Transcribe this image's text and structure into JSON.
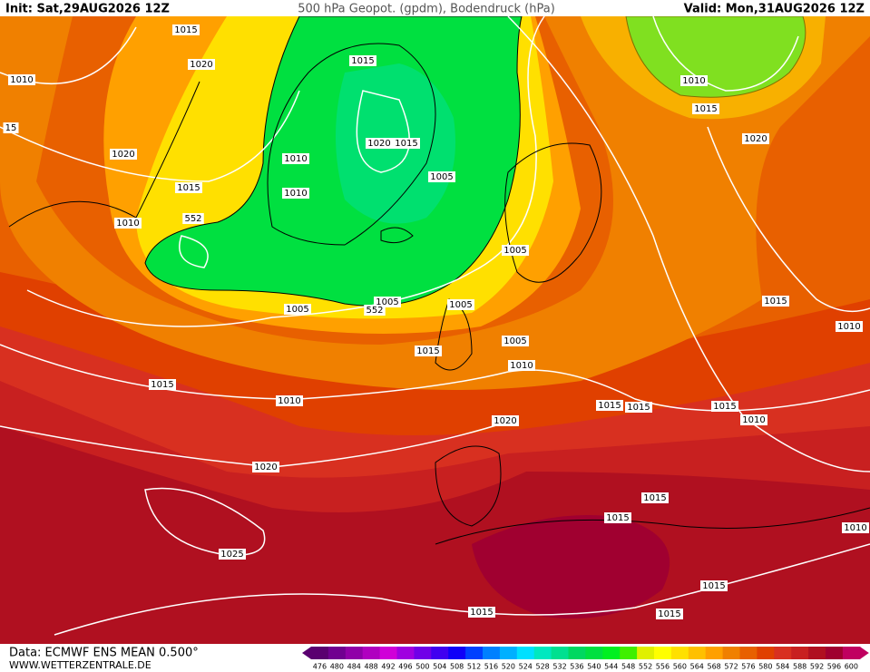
{
  "header": {
    "init": "Init: Sat,29AUG2026 12Z",
    "title": "500 hPa Geopot. (gpdm), Bodendruck (hPa)",
    "valid": "Valid: Mon,31AUG2026 12Z"
  },
  "footer": {
    "source": "Data: ECMWF ENS MEAN 0.500°",
    "site": "WWW.WETTERZENTRALE.DE"
  },
  "legend": {
    "values": [
      476,
      480,
      484,
      488,
      492,
      496,
      500,
      504,
      508,
      512,
      516,
      520,
      524,
      528,
      532,
      536,
      540,
      544,
      548,
      552,
      556,
      560,
      564,
      568,
      572,
      576,
      580,
      584,
      588,
      592,
      596,
      600
    ],
    "colors": [
      "#5a0070",
      "#700090",
      "#9000a8",
      "#b000c0",
      "#d000d8",
      "#a000e0",
      "#7000e8",
      "#4000f0",
      "#1000f8",
      "#0040ff",
      "#0080ff",
      "#00b0ff",
      "#00e0ff",
      "#00e8c0",
      "#00e090",
      "#00d860",
      "#00e040",
      "#00f020",
      "#40f000",
      "#e0f000",
      "#ffff00",
      "#ffe000",
      "#ffc000",
      "#ffa000",
      "#f08000",
      "#e86000",
      "#e04000",
      "#d83020",
      "#c82020",
      "#b01020",
      "#a00030",
      "#c00060"
    ]
  },
  "isobar_labels": [
    "1015",
    "1020",
    "1010",
    "15",
    "1015",
    "1020",
    "1015",
    "1010",
    "1005",
    "1020",
    "1015",
    "1010",
    "1010",
    "552",
    "1005",
    "1005",
    "1005",
    "552",
    "1005",
    "1015",
    "1005",
    "1010",
    "1015",
    "1010",
    "1020",
    "1015",
    "1015",
    "1015",
    "1010",
    "1015",
    "1010",
    "1010",
    "1015",
    "1020",
    "1020",
    "1015",
    "1015",
    "1010",
    "1025",
    "1015",
    "1015",
    "1015"
  ]
}
